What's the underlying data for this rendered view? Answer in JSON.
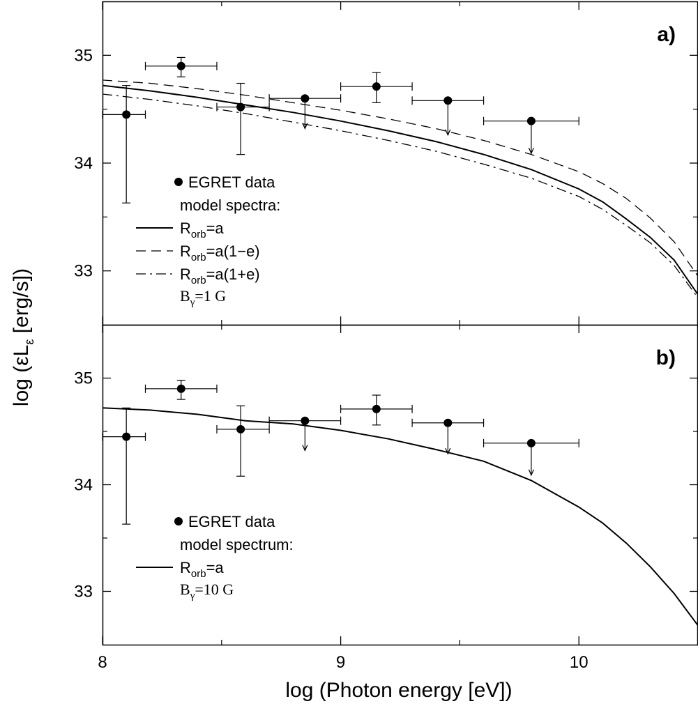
{
  "chart_data": {
    "type": "scatter",
    "xlabel": "log (Photon energy [eV])",
    "ylabel": "log (εL",
    "ylabel_sub": "ε",
    "ylabel_unit": " [erg/s])",
    "xlim": [
      8,
      10.5
    ],
    "ylim": [
      32.5,
      35.5
    ],
    "x_ticks": [
      8,
      9,
      10
    ],
    "x_minor_ticks": [
      8.5,
      9.5
    ],
    "y_ticks": [
      33,
      34,
      35
    ],
    "y_minor_ticks": [
      33.5,
      34.5
    ],
    "grid": false,
    "panels": [
      {
        "label": "a)",
        "legend": {
          "placement": "lower-left",
          "data_label": "EGRET data",
          "model_heading": "model spectra:",
          "model_entries": [
            {
              "style": "solid",
              "text": "R",
              "sub": "orb",
              "rest": "=a"
            },
            {
              "style": "dashed",
              "text": "R",
              "sub": "orb",
              "rest": "=a(1−e)"
            },
            {
              "style": "dashdot",
              "text": "R",
              "sub": "orb",
              "rest": "=a(1+e)"
            }
          ],
          "b_text": "B",
          "b_sub": "γ",
          "b_rest": "=1 G"
        },
        "points": [
          {
            "x": 8.1,
            "y": 34.45,
            "xerr": [
              8.0,
              8.18
            ],
            "yerr": [
              33.63,
              34.72
            ],
            "upper_limit": false
          },
          {
            "x": 8.33,
            "y": 34.9,
            "xerr": [
              8.18,
              8.48
            ],
            "yerr": [
              34.8,
              34.98
            ],
            "upper_limit": false
          },
          {
            "x": 8.58,
            "y": 34.52,
            "xerr": [
              8.48,
              8.7
            ],
            "yerr": [
              34.08,
              34.74
            ],
            "upper_limit": false
          },
          {
            "x": 8.85,
            "y": 34.6,
            "xerr": [
              8.7,
              9.0
            ],
            "yerr": null,
            "upper_limit": true,
            "limit_to": 34.32
          },
          {
            "x": 9.15,
            "y": 34.71,
            "xerr": [
              9.0,
              9.3
            ],
            "yerr": [
              34.56,
              34.84
            ],
            "upper_limit": false
          },
          {
            "x": 9.45,
            "y": 34.58,
            "xerr": [
              9.3,
              9.6
            ],
            "yerr": null,
            "upper_limit": true,
            "limit_to": 34.26
          },
          {
            "x": 9.8,
            "y": 34.39,
            "xerr": [
              9.6,
              10.0
            ],
            "yerr": null,
            "upper_limit": true,
            "limit_to": 34.09
          }
        ],
        "series": [
          {
            "name": "R_orb=a",
            "style": "solid",
            "x": [
              8.0,
              8.2,
              8.4,
              8.6,
              8.8,
              9.0,
              9.2,
              9.4,
              9.6,
              9.8,
              10.0,
              10.1,
              10.2,
              10.3,
              10.4,
              10.5
            ],
            "y": [
              34.72,
              34.67,
              34.61,
              34.54,
              34.47,
              34.39,
              34.3,
              34.2,
              34.08,
              33.94,
              33.76,
              33.64,
              33.48,
              33.31,
              33.1,
              32.78
            ]
          },
          {
            "name": "R_orb=a(1-e)",
            "style": "dashed",
            "x": [
              8.0,
              8.2,
              8.4,
              8.6,
              8.8,
              9.0,
              9.2,
              9.4,
              9.6,
              9.8,
              10.0,
              10.1,
              10.2,
              10.3,
              10.4,
              10.5
            ],
            "y": [
              34.77,
              34.74,
              34.69,
              34.63,
              34.56,
              34.49,
              34.41,
              34.32,
              34.21,
              34.08,
              33.92,
              33.81,
              33.67,
              33.49,
              33.27,
              32.95
            ]
          },
          {
            "name": "R_orb=a(1+e)",
            "style": "dashdot",
            "x": [
              8.0,
              8.2,
              8.4,
              8.6,
              8.8,
              9.0,
              9.2,
              9.4,
              9.6,
              9.8,
              10.0,
              10.1,
              10.2,
              10.3,
              10.4,
              10.5
            ],
            "y": [
              34.64,
              34.59,
              34.53,
              34.46,
              34.38,
              34.3,
              34.21,
              34.11,
              33.99,
              33.86,
              33.69,
              33.57,
              33.42,
              33.26,
              33.05,
              32.75
            ]
          }
        ]
      },
      {
        "label": "b)",
        "legend": {
          "placement": "lower-left",
          "data_label": "EGRET data",
          "model_heading": "model spectrum:",
          "model_entries": [
            {
              "style": "solid",
              "text": "R",
              "sub": "orb",
              "rest": "=a"
            }
          ],
          "b_text": "B",
          "b_sub": "γ",
          "b_rest": "=10 G"
        },
        "points": [
          {
            "x": 8.1,
            "y": 34.45,
            "xerr": [
              8.0,
              8.18
            ],
            "yerr": [
              33.63,
              34.72
            ],
            "upper_limit": false
          },
          {
            "x": 8.33,
            "y": 34.9,
            "xerr": [
              8.18,
              8.48
            ],
            "yerr": [
              34.8,
              34.98
            ],
            "upper_limit": false
          },
          {
            "x": 8.58,
            "y": 34.52,
            "xerr": [
              8.48,
              8.7
            ],
            "yerr": [
              34.08,
              34.74
            ],
            "upper_limit": false
          },
          {
            "x": 8.85,
            "y": 34.6,
            "xerr": [
              8.7,
              9.0
            ],
            "yerr": null,
            "upper_limit": true,
            "limit_to": 34.32
          },
          {
            "x": 9.15,
            "y": 34.71,
            "xerr": [
              9.0,
              9.3
            ],
            "yerr": [
              34.56,
              34.84
            ],
            "upper_limit": false
          },
          {
            "x": 9.45,
            "y": 34.58,
            "xerr": [
              9.3,
              9.6
            ],
            "yerr": null,
            "upper_limit": true,
            "limit_to": 34.29
          },
          {
            "x": 9.8,
            "y": 34.39,
            "xerr": [
              9.6,
              10.0
            ],
            "yerr": null,
            "upper_limit": true,
            "limit_to": 34.09
          }
        ],
        "series": [
          {
            "name": "R_orb=a",
            "style": "solid",
            "x": [
              8.0,
              8.2,
              8.4,
              8.6,
              8.8,
              9.0,
              9.2,
              9.4,
              9.6,
              9.8,
              10.0,
              10.1,
              10.2,
              10.3,
              10.4,
              10.5
            ],
            "y": [
              34.72,
              34.7,
              34.66,
              34.6,
              34.57,
              34.51,
              34.43,
              34.33,
              34.22,
              34.04,
              33.79,
              33.64,
              33.45,
              33.23,
              32.98,
              32.68
            ]
          }
        ]
      }
    ]
  }
}
